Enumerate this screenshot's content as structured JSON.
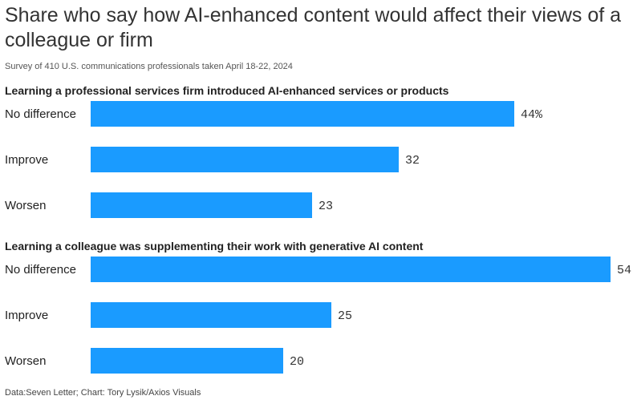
{
  "chart_data": {
    "type": "bar",
    "orientation": "horizontal",
    "title": "Share who say how AI-enhanced content would affect their views of a colleague or firm",
    "subtitle": "Survey of 410 U.S. communications professionals taken April 18-22, 2024",
    "source": "Data:Seven Letter; Chart: Tory Lysik/Axios Visuals",
    "bar_color": "#1a9bff",
    "xlim": [
      0,
      54
    ],
    "groups": [
      {
        "title": "Learning a professional services firm introduced AI-enhanced services or products",
        "categories": [
          "No difference",
          "Improve",
          "Worsen"
        ],
        "values": [
          44,
          32,
          23
        ],
        "value_labels": [
          "44%",
          "32",
          "23"
        ]
      },
      {
        "title": "Learning a colleague was supplementing their work with generative AI content",
        "categories": [
          "No difference",
          "Improve",
          "Worsen"
        ],
        "values": [
          54,
          25,
          20
        ],
        "value_labels": [
          "54",
          "25",
          "20"
        ]
      }
    ]
  }
}
